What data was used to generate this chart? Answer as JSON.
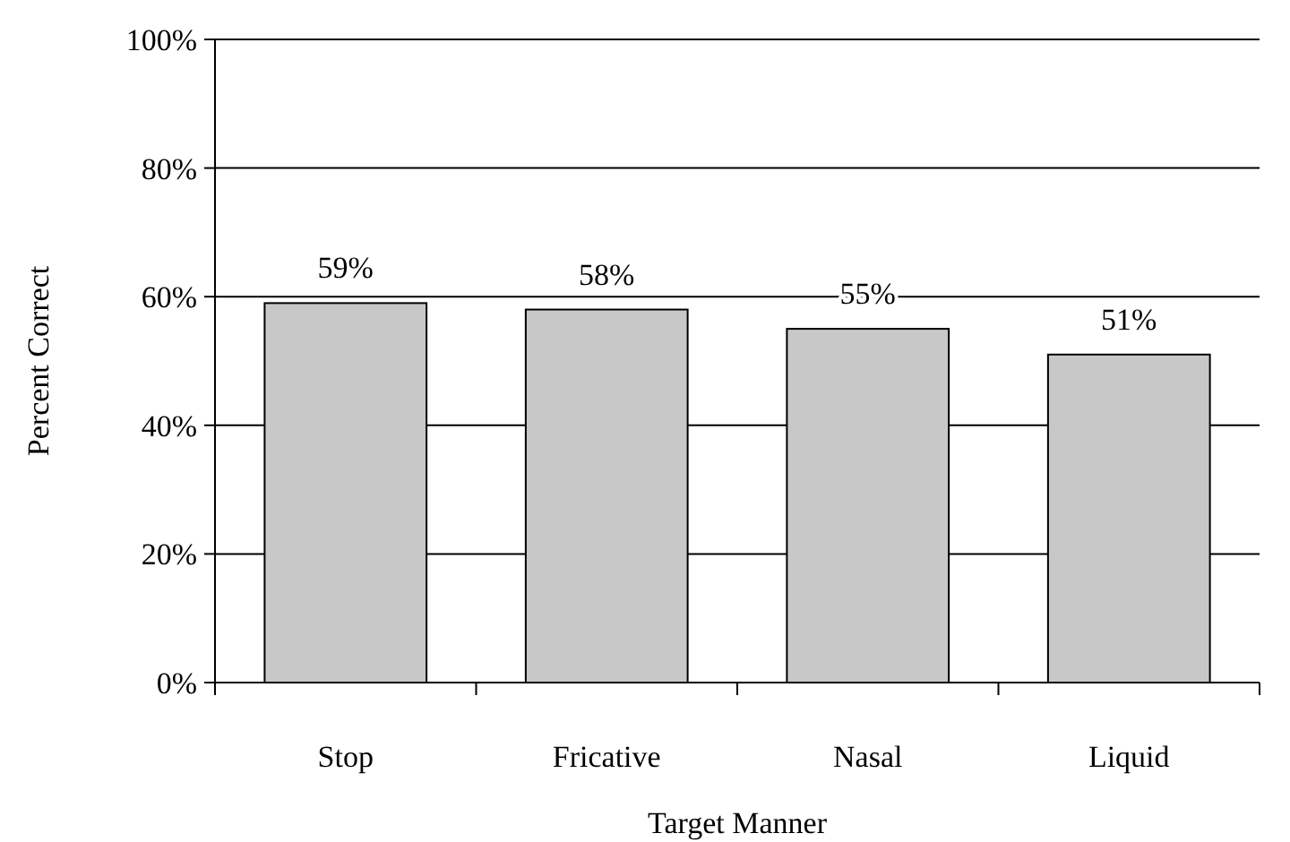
{
  "chart_data": {
    "type": "bar",
    "xlabel": "Target Manner",
    "ylabel": "Percent Correct",
    "categories": [
      "Stop",
      "Fricative",
      "Nasal",
      "Liquid"
    ],
    "values": [
      59,
      58,
      55,
      51
    ],
    "color": "#c8c8c8",
    "value_labels": [
      "59%",
      "58%",
      "55%",
      "51%"
    ],
    "ylim": [
      0,
      100
    ],
    "yticks": [
      {
        "value": 0,
        "label": "0%"
      },
      {
        "value": 20,
        "label": "20%"
      },
      {
        "value": 40,
        "label": "40%"
      },
      {
        "value": 60,
        "label": "60%"
      },
      {
        "value": 80,
        "label": "80%"
      },
      {
        "value": 100,
        "label": "100%"
      }
    ],
    "grid": "y"
  }
}
